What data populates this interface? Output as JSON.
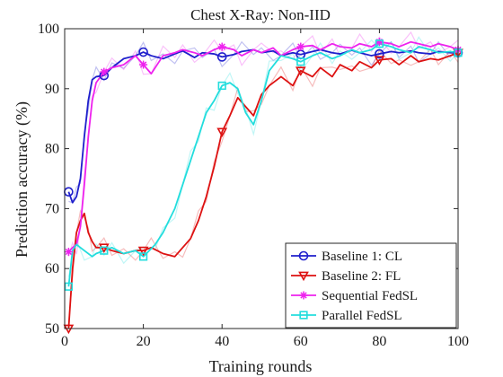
{
  "chart_data": {
    "type": "line",
    "title": "Chest X-Ray: Non-IID",
    "xlabel": "Training rounds",
    "ylabel": "Prediction accuracy (%)",
    "xlim": [
      0,
      100
    ],
    "ylim": [
      50,
      100
    ],
    "xticks": [
      0,
      20,
      40,
      60,
      80,
      100
    ],
    "yticks": [
      50,
      60,
      70,
      80,
      90,
      100
    ],
    "grid": false,
    "legend_position": "bottom-right",
    "series": [
      {
        "name": "Baseline 1: CL",
        "color": "#1f1fcc",
        "marker": "circle",
        "x": [
          1,
          2,
          3,
          4,
          5,
          6,
          7,
          8,
          10,
          12,
          15,
          18,
          20,
          22,
          25,
          28,
          30,
          33,
          35,
          38,
          40,
          43,
          45,
          48,
          50,
          53,
          55,
          58,
          60,
          63,
          65,
          68,
          70,
          73,
          75,
          78,
          80,
          83,
          85,
          88,
          90,
          93,
          95,
          98,
          100
        ],
        "y": [
          72.8,
          71.0,
          72.0,
          75.0,
          82.0,
          88.0,
          91.5,
          92.0,
          92.2,
          93.5,
          95.0,
          95.5,
          96.1,
          95.5,
          95.0,
          95.8,
          96.3,
          95.2,
          96.0,
          95.8,
          95.3,
          95.7,
          96.2,
          96.5,
          96.0,
          96.3,
          95.5,
          96.0,
          95.7,
          96.2,
          96.5,
          96.0,
          95.8,
          96.4,
          96.0,
          95.5,
          95.8,
          96.2,
          96.0,
          96.3,
          96.0,
          95.8,
          96.2,
          96.0,
          96.0
        ],
        "marker_x": [
          1,
          10,
          20,
          40,
          60,
          80,
          100
        ],
        "marker_y": [
          72.8,
          92.2,
          96.1,
          95.3,
          95.7,
          95.8,
          96.0
        ]
      },
      {
        "name": "Baseline 2: FL",
        "color": "#dd1111",
        "marker": "triangle-down",
        "x": [
          1,
          2,
          3,
          4,
          5,
          6,
          7,
          8,
          10,
          12,
          15,
          18,
          20,
          22,
          25,
          28,
          30,
          32,
          34,
          36,
          38,
          40,
          42,
          44,
          46,
          48,
          50,
          52,
          55,
          58,
          60,
          63,
          65,
          68,
          70,
          73,
          75,
          78,
          80,
          83,
          85,
          88,
          90,
          93,
          95,
          98,
          100
        ],
        "y": [
          50.0,
          60.0,
          66.0,
          68.0,
          69.2,
          66.0,
          64.5,
          63.5,
          63.5,
          63.0,
          62.5,
          63.0,
          63.0,
          63.5,
          62.5,
          62.0,
          63.5,
          65.0,
          68.0,
          72.0,
          77.0,
          82.8,
          85.5,
          88.5,
          87.0,
          85.5,
          89.0,
          90.5,
          92.0,
          90.5,
          93.0,
          92.0,
          93.5,
          92.0,
          94.0,
          93.0,
          94.5,
          93.5,
          94.8,
          95.0,
          94.0,
          95.5,
          94.5,
          95.0,
          94.8,
          95.5,
          96.0
        ],
        "marker_x": [
          1,
          10,
          20,
          40,
          60,
          80,
          100
        ],
        "marker_y": [
          50.0,
          63.5,
          63.0,
          82.8,
          93.0,
          94.8,
          96.0
        ]
      },
      {
        "name": "Sequential FedSL",
        "color": "#ee22ee",
        "marker": "asterisk",
        "x": [
          1,
          2,
          3,
          4,
          5,
          6,
          7,
          8,
          10,
          12,
          15,
          18,
          20,
          22,
          25,
          28,
          30,
          33,
          35,
          38,
          40,
          43,
          45,
          48,
          50,
          53,
          55,
          58,
          60,
          63,
          65,
          68,
          70,
          73,
          75,
          78,
          80,
          83,
          85,
          88,
          90,
          93,
          95,
          98,
          100
        ],
        "y": [
          62.8,
          63.5,
          64.0,
          67.0,
          74.0,
          82.0,
          88.0,
          91.0,
          92.8,
          93.5,
          94.0,
          95.5,
          94.0,
          92.5,
          95.5,
          96.0,
          96.5,
          96.0,
          95.5,
          96.5,
          97.0,
          96.5,
          95.5,
          96.5,
          96.0,
          96.8,
          95.5,
          96.5,
          97.0,
          97.2,
          96.5,
          97.5,
          97.0,
          96.8,
          97.5,
          97.0,
          97.8,
          97.5,
          97.0,
          97.8,
          97.5,
          97.0,
          97.5,
          97.0,
          96.5
        ],
        "marker_x": [
          1,
          10,
          20,
          40,
          60,
          80,
          100
        ],
        "marker_y": [
          62.8,
          92.8,
          94.0,
          97.0,
          97.0,
          97.8,
          96.5
        ]
      },
      {
        "name": "Parallel FedSL",
        "color": "#22dddd",
        "marker": "square",
        "x": [
          1,
          2,
          3,
          5,
          7,
          8,
          10,
          12,
          15,
          18,
          20,
          23,
          25,
          28,
          30,
          32,
          34,
          36,
          38,
          40,
          42,
          44,
          46,
          48,
          50,
          52,
          55,
          58,
          60,
          63,
          65,
          68,
          70,
          73,
          75,
          78,
          80,
          83,
          85,
          88,
          90,
          93,
          95,
          98,
          100
        ],
        "y": [
          57.0,
          63.0,
          64.0,
          63.0,
          62.0,
          62.5,
          63.0,
          63.5,
          62.5,
          63.0,
          62.0,
          64.0,
          66.0,
          70.0,
          74.0,
          78.0,
          82.0,
          86.0,
          88.0,
          90.5,
          91.0,
          90.0,
          86.0,
          84.0,
          88.0,
          93.0,
          95.5,
          95.0,
          94.5,
          95.5,
          96.0,
          95.0,
          95.5,
          96.5,
          96.0,
          96.5,
          97.5,
          97.0,
          96.5,
          96.0,
          97.0,
          96.5,
          96.0,
          96.2,
          96.0
        ],
        "marker_x": [
          1,
          10,
          20,
          40,
          60,
          80,
          100
        ],
        "marker_y": [
          57.0,
          63.0,
          62.0,
          90.5,
          94.5,
          97.5,
          96.0
        ]
      }
    ]
  }
}
